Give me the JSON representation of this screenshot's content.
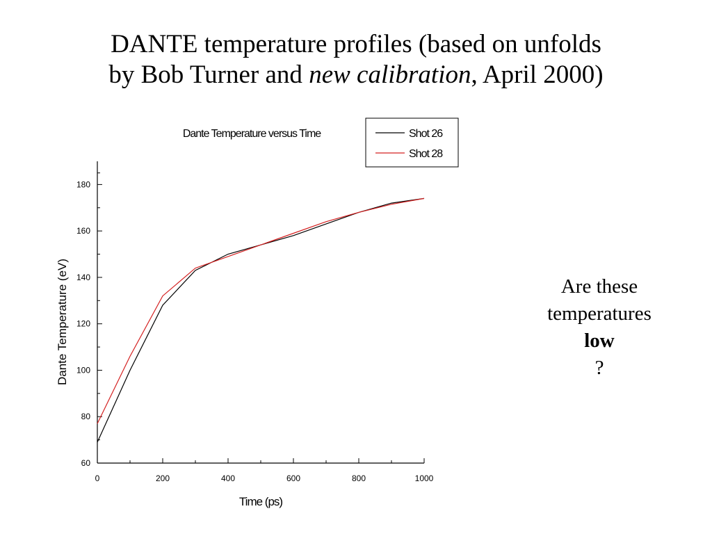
{
  "slide": {
    "title_line1": "DANTE temperature profiles (based on unfolds",
    "title_line2_a": "by Bob Turner and ",
    "title_line2_italic": "new calibration",
    "title_line2_b": ", April 2000)"
  },
  "note": {
    "line1": "Are these",
    "line2": "temperatures",
    "line3_bold": "low",
    "line3_end": "?"
  },
  "chart_data": {
    "type": "line",
    "title": "Dante Temperature versus Time",
    "xlabel": "Time (ps)",
    "ylabel": "Dante Temperature (eV)",
    "xlim": [
      0,
      1000
    ],
    "ylim": [
      60,
      190
    ],
    "x_ticks": [
      0,
      200,
      400,
      600,
      800,
      1000
    ],
    "y_ticks": [
      60,
      80,
      100,
      120,
      140,
      160,
      180
    ],
    "grid": false,
    "legend_position": "top-right",
    "series": [
      {
        "name": "Shot 26",
        "color": "#000000",
        "x": [
          0,
          100,
          200,
          300,
          400,
          500,
          600,
          700,
          800,
          900,
          1000
        ],
        "y": [
          69,
          100,
          128,
          143,
          150,
          154,
          158,
          163,
          168,
          172,
          174
        ]
      },
      {
        "name": "Shot 28",
        "color": "#d42020",
        "x": [
          0,
          100,
          200,
          300,
          400,
          500,
          600,
          700,
          800,
          900,
          1000
        ],
        "y": [
          77,
          106,
          132,
          144,
          149,
          154,
          159,
          164,
          168,
          171.5,
          174
        ]
      }
    ]
  }
}
